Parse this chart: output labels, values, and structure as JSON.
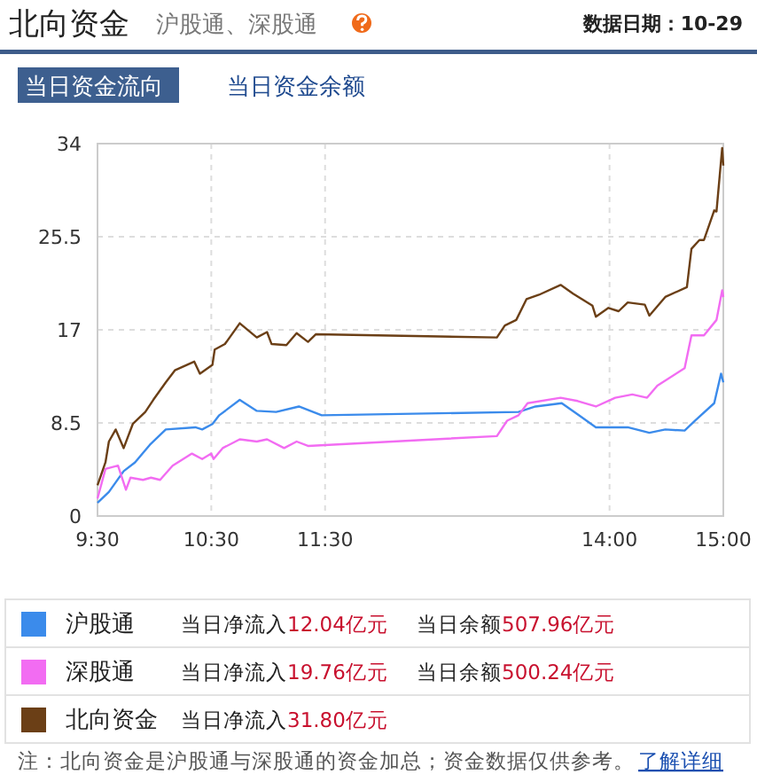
{
  "chart_data": {
    "type": "line",
    "title": "北向资金",
    "subtitle": "沪股通、深股通",
    "annotations": [
      "数据日期：10-29",
      "当日资金流向",
      "当日资金余额",
      "当日净流入12.04亿元",
      "当日余额507.96亿元",
      "当日净流入19.76亿元",
      "当日余额500.24亿元",
      "当日净流入31.80亿元",
      "注：北向资金是沪股通与深股通的资金加总；资金数据仅供参考。",
      "了解详细"
    ],
    "xlim": [
      9.5,
      15
    ],
    "xticks": [
      {
        "value": 9.5,
        "label": "9:30"
      },
      {
        "value": 10.5,
        "label": "10:30"
      },
      {
        "value": 11.5,
        "label": "11:30"
      },
      {
        "value": 14,
        "label": "14:00"
      },
      {
        "value": 15,
        "label": "15:00"
      }
    ],
    "ylim": [
      0,
      34
    ],
    "yticks": [
      0,
      8.5,
      17,
      25.5,
      34
    ],
    "grid": true,
    "legend": "bottom",
    "marker": "none",
    "line_style": "solid",
    "series": [
      {
        "name": "沪股通",
        "color": "#3b8beb",
        "x": [
          9.5,
          9.6,
          9.73,
          9.83,
          9.96,
          10.1,
          10.36,
          10.42,
          10.51,
          10.57,
          10.75,
          10.9,
          11.07,
          11.27,
          11.47,
          13.2,
          13.35,
          13.58,
          13.73,
          13.88,
          14.16,
          14.35,
          14.49,
          14.66,
          14.75,
          14.92,
          14.98,
          15
        ],
        "values": [
          1.2,
          2.2,
          4.1,
          4.9,
          6.5,
          7.9,
          8.1,
          7.9,
          8.4,
          9.2,
          10.6,
          9.6,
          9.5,
          10.0,
          9.2,
          9.5,
          10.0,
          10.3,
          9.2,
          8.1,
          8.1,
          7.6,
          7.9,
          7.8,
          8.7,
          10.3,
          13.0,
          12.2
        ]
      },
      {
        "name": "深股通",
        "color": "#f26cf2",
        "x": [
          9.5,
          9.57,
          9.68,
          9.75,
          9.79,
          9.9,
          9.97,
          10.05,
          10.16,
          10.33,
          10.42,
          10.5,
          10.52,
          10.6,
          10.75,
          10.9,
          10.99,
          11.14,
          11.25,
          11.35,
          13.01,
          13.1,
          13.2,
          13.28,
          13.57,
          13.72,
          13.88,
          14.05,
          14.2,
          14.33,
          14.42,
          14.66,
          14.72,
          14.83,
          14.94,
          14.99,
          15
        ],
        "values": [
          1.6,
          4.3,
          4.6,
          2.4,
          3.5,
          3.3,
          3.5,
          3.3,
          4.6,
          5.7,
          5.2,
          5.7,
          5.2,
          6.2,
          7.0,
          6.8,
          7.0,
          6.2,
          6.8,
          6.4,
          7.3,
          8.7,
          9.2,
          10.3,
          10.8,
          10.5,
          10.0,
          10.8,
          11.1,
          10.8,
          11.9,
          13.5,
          16.5,
          16.5,
          17.9,
          20.6,
          20.0
        ]
      },
      {
        "name": "北向资金",
        "color": "#6b3f16",
        "x": [
          9.5,
          9.57,
          9.6,
          9.66,
          9.73,
          9.81,
          9.92,
          9.99,
          10.1,
          10.18,
          10.35,
          10.4,
          10.51,
          10.53,
          10.62,
          10.75,
          10.9,
          10.99,
          11.03,
          11.16,
          11.25,
          11.35,
          11.42,
          13.01,
          13.08,
          13.18,
          13.27,
          13.38,
          13.57,
          13.68,
          13.85,
          13.88,
          13.99,
          14.08,
          14.16,
          14.31,
          14.35,
          14.49,
          14.68,
          14.72,
          14.79,
          14.83,
          14.92,
          14.94,
          14.99,
          15
        ],
        "values": [
          2.8,
          4.9,
          6.8,
          7.9,
          6.2,
          8.4,
          9.5,
          10.6,
          12.2,
          13.3,
          14.1,
          13.0,
          13.8,
          15.2,
          15.7,
          17.6,
          16.3,
          16.8,
          15.7,
          15.6,
          16.7,
          15.9,
          16.6,
          16.3,
          17.4,
          17.9,
          19.8,
          20.2,
          21.1,
          20.3,
          19.2,
          18.2,
          19.0,
          18.7,
          19.5,
          19.3,
          18.3,
          20.0,
          20.9,
          24.4,
          25.2,
          25.2,
          27.9,
          27.8,
          33.6,
          32.0
        ]
      }
    ]
  }
}
